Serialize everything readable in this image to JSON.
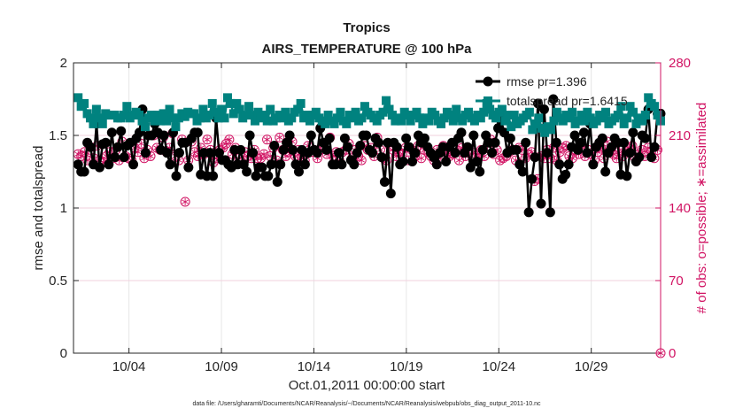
{
  "chart_data": {
    "type": "line",
    "title": "Tropics",
    "subtitle": "AIRS_TEMPERATURE @ 100 hPa",
    "xlabel": "Oct.01,2011 00:00:00 start",
    "ylabel": "rmse and totalspread",
    "y2label": "# of obs: o=possible; ∗=assimilated",
    "xlim": [
      0,
      31.75
    ],
    "ylim": [
      0,
      2
    ],
    "y2lim": [
      0,
      280
    ],
    "x_ticks": [
      {
        "x": 3,
        "label": "10/04"
      },
      {
        "x": 8,
        "label": "10/09"
      },
      {
        "x": 13,
        "label": "10/14"
      },
      {
        "x": 18,
        "label": "10/19"
      },
      {
        "x": 23,
        "label": "10/24"
      },
      {
        "x": 28,
        "label": "10/29"
      }
    ],
    "y_ticks": [
      {
        "v": 0,
        "label": "0"
      },
      {
        "v": 0.5,
        "label": "0.5"
      },
      {
        "v": 1,
        "label": "1"
      },
      {
        "v": 1.5,
        "label": "1.5"
      },
      {
        "v": 2,
        "label": "2"
      }
    ],
    "y2_ticks": [
      {
        "v": 0,
        "label": "0"
      },
      {
        "v": 70,
        "label": "70"
      },
      {
        "v": 140,
        "label": "140"
      },
      {
        "v": 210,
        "label": "210"
      },
      {
        "v": 280,
        "label": "280"
      }
    ],
    "legend": [
      {
        "name": "rmse",
        "label": "rmse pr=1.396",
        "color": "#000000"
      },
      {
        "name": "totalspread",
        "label": "totalspread pr=1.6415",
        "color": "#00827f"
      }
    ],
    "footer": "data file: /Users/gharamti/Documents/NCAR/Reanalysis/~/Documents/NCAR/Reanalysis/webpub/obs_diag_output_2011-10.nc",
    "series": [
      {
        "name": "rmse",
        "color": "#000000",
        "values": [
          1.3,
          1.25,
          1.25,
          1.45,
          1.42,
          1.3,
          1.58,
          1.28,
          1.44,
          1.45,
          1.3,
          1.52,
          1.35,
          1.42,
          1.53,
          1.35,
          1.43,
          1.45,
          1.3,
          1.48,
          1.52,
          1.68,
          1.38,
          1.5,
          1.5,
          1.58,
          1.52,
          1.4,
          1.5,
          1.38,
          1.3,
          1.52,
          1.22,
          1.38,
          1.45,
          1.45,
          1.28,
          1.48,
          1.52,
          1.52,
          1.23,
          1.38,
          1.22,
          1.38,
          1.22,
          1.62,
          1.38,
          1.33,
          1.33,
          1.3,
          1.28,
          1.4,
          1.3,
          1.4,
          1.3,
          1.25,
          1.5,
          1.38,
          1.22,
          1.28,
          1.28,
          1.22,
          1.22,
          1.3,
          1.43,
          1.18,
          1.3,
          1.4,
          1.45,
          1.5,
          1.4,
          1.3,
          1.25,
          1.4,
          1.3,
          1.38,
          1.5,
          1.4,
          1.38,
          1.55,
          1.45,
          1.4,
          1.48,
          1.3,
          1.3,
          1.38,
          1.3,
          1.48,
          1.42,
          1.33,
          1.3,
          1.38,
          1.43,
          1.5,
          1.5,
          1.4,
          1.38,
          1.48,
          1.45,
          1.35,
          1.18,
          1.45,
          1.1,
          1.45,
          1.42,
          1.3,
          1.32,
          1.48,
          1.42,
          1.32,
          1.38,
          1.5,
          1.45,
          1.48,
          1.42,
          1.38,
          1.35,
          1.3,
          1.38,
          1.42,
          1.32,
          1.42,
          1.45,
          1.38,
          1.48,
          1.52,
          1.38,
          1.42,
          1.28,
          1.5,
          1.32,
          1.25,
          1.4,
          1.5,
          1.45,
          1.38,
          1.45,
          1.55,
          1.6,
          1.52,
          1.38,
          1.48,
          1.4,
          1.4,
          1.3,
          1.25,
          1.45,
          0.97,
          1.2,
          1.35,
          1.72,
          1.03,
          1.68,
          1.38,
          0.97,
          1.75,
          1.45,
          1.3,
          1.2,
          1.23,
          1.3,
          1.42,
          1.5,
          1.4,
          1.45,
          1.52,
          1.38,
          1.58,
          1.3,
          1.42,
          1.45,
          1.48,
          1.25,
          1.38,
          1.42,
          1.48,
          1.45,
          1.23,
          1.45,
          1.22,
          1.38,
          1.52,
          1.32,
          1.35,
          1.5,
          1.48,
          1.68,
          1.35,
          1.42,
          1.65,
          1.65
        ]
      },
      {
        "name": "totalspread",
        "color": "#00827f",
        "values": [
          1.76,
          1.7,
          1.72,
          1.65,
          1.62,
          1.58,
          1.68,
          1.62,
          1.58,
          1.65,
          1.64,
          1.64,
          1.64,
          1.62,
          1.62,
          1.64,
          1.7,
          1.62,
          1.64,
          1.66,
          1.64,
          1.6,
          1.56,
          1.62,
          1.64,
          1.6,
          1.64,
          1.6,
          1.65,
          1.6,
          1.68,
          1.62,
          1.56,
          1.62,
          1.65,
          1.63,
          1.66,
          1.65,
          1.65,
          1.6,
          1.62,
          1.68,
          1.62,
          1.64,
          1.72,
          1.66,
          1.62,
          1.68,
          1.62,
          1.76,
          1.72,
          1.65,
          1.72,
          1.68,
          1.62,
          1.64,
          1.7,
          1.64,
          1.6,
          1.66,
          1.62,
          1.64,
          1.6,
          1.68,
          1.6,
          1.62,
          1.64,
          1.62,
          1.66,
          1.6,
          1.62,
          1.66,
          1.68,
          1.72,
          1.62,
          1.64,
          1.6,
          1.64,
          1.66,
          1.62,
          1.6,
          1.58,
          1.64,
          1.6,
          1.58,
          1.62,
          1.66,
          1.6,
          1.58,
          1.64,
          1.62,
          1.66,
          1.6,
          1.62,
          1.7,
          1.66,
          1.64,
          1.62,
          1.6,
          1.64,
          1.66,
          1.74,
          1.68,
          1.64,
          1.6,
          1.62,
          1.6,
          1.66,
          1.64,
          1.6,
          1.64,
          1.66,
          1.62,
          1.58,
          1.62,
          1.6,
          1.66,
          1.64,
          1.6,
          1.58,
          1.62,
          1.66,
          1.64,
          1.6,
          1.68,
          1.62,
          1.6,
          1.64,
          1.66,
          1.62,
          1.6,
          1.64,
          1.62,
          1.66,
          1.72,
          1.68,
          1.64,
          1.62,
          1.66,
          1.68,
          1.6,
          1.64,
          1.56,
          1.64,
          1.58,
          1.6,
          1.62,
          1.64,
          1.66,
          1.54,
          1.58,
          1.62,
          1.55,
          1.52,
          1.56,
          1.54,
          1.6,
          1.66,
          1.62,
          1.6,
          1.64,
          1.62,
          1.66,
          1.58,
          1.6,
          1.64,
          1.6,
          1.66,
          1.62,
          1.58,
          1.6,
          1.64,
          1.62,
          1.66,
          1.58,
          1.6,
          1.62,
          1.64,
          1.7,
          1.58,
          1.62,
          1.7,
          1.66,
          1.58,
          1.62,
          1.6,
          1.64,
          1.76,
          1.72,
          1.7,
          1.64,
          1.6
        ]
      },
      {
        "name": "obs_possible",
        "axis": "right",
        "color": "#d11363",
        "values": [
          192,
          190,
          194,
          186,
          196,
          188,
          200,
          186,
          184,
          190,
          194,
          188,
          196,
          186,
          204,
          190,
          188,
          186,
          198,
          194,
          202,
          188,
          196,
          190,
          210,
          198,
          196,
          208,
          194,
          198,
          212,
          190,
          186,
          206,
          146,
          186,
          204,
          194,
          190,
          198,
          192,
          206,
          196,
          184,
          188,
          196,
          198,
          202,
          206,
          192,
          198,
          188,
          184,
          194,
          190,
          188,
          196,
          188,
          188,
          192,
          206,
          190,
          198,
          186,
          208,
          196,
          190,
          194,
          204,
          190,
          196,
          188,
          186,
          200,
          194,
          196,
          188,
          196,
          200,
          192,
          208,
          190,
          194,
          186,
          194,
          196,
          202,
          188,
          196,
          190,
          186,
          200,
          196,
          198,
          190,
          208,
          196,
          188,
          186,
          200,
          196,
          190,
          194,
          192,
          198,
          186,
          196,
          190,
          200,
          188,
          196,
          194,
          190,
          186,
          196,
          188,
          200,
          194,
          190,
          192,
          196,
          186,
          198,
          190,
          194,
          196,
          188,
          192,
          196,
          190,
          200,
          206,
          192,
          196,
          186,
          188,
          190,
          194,
          196,
          186,
          198,
          196,
          188,
          192,
          194,
          166,
          168,
          190,
          188,
          196,
          188,
          198,
          186,
          194,
          198,
          200,
          190,
          188,
          196,
          192,
          198,
          190,
          196,
          192,
          186,
          194,
          198,
          188,
          204,
          196,
          192,
          188,
          196,
          190,
          194,
          198,
          200,
          188,
          192,
          196,
          190,
          198,
          194,
          188,
          196,
          0
        ]
      }
    ]
  }
}
